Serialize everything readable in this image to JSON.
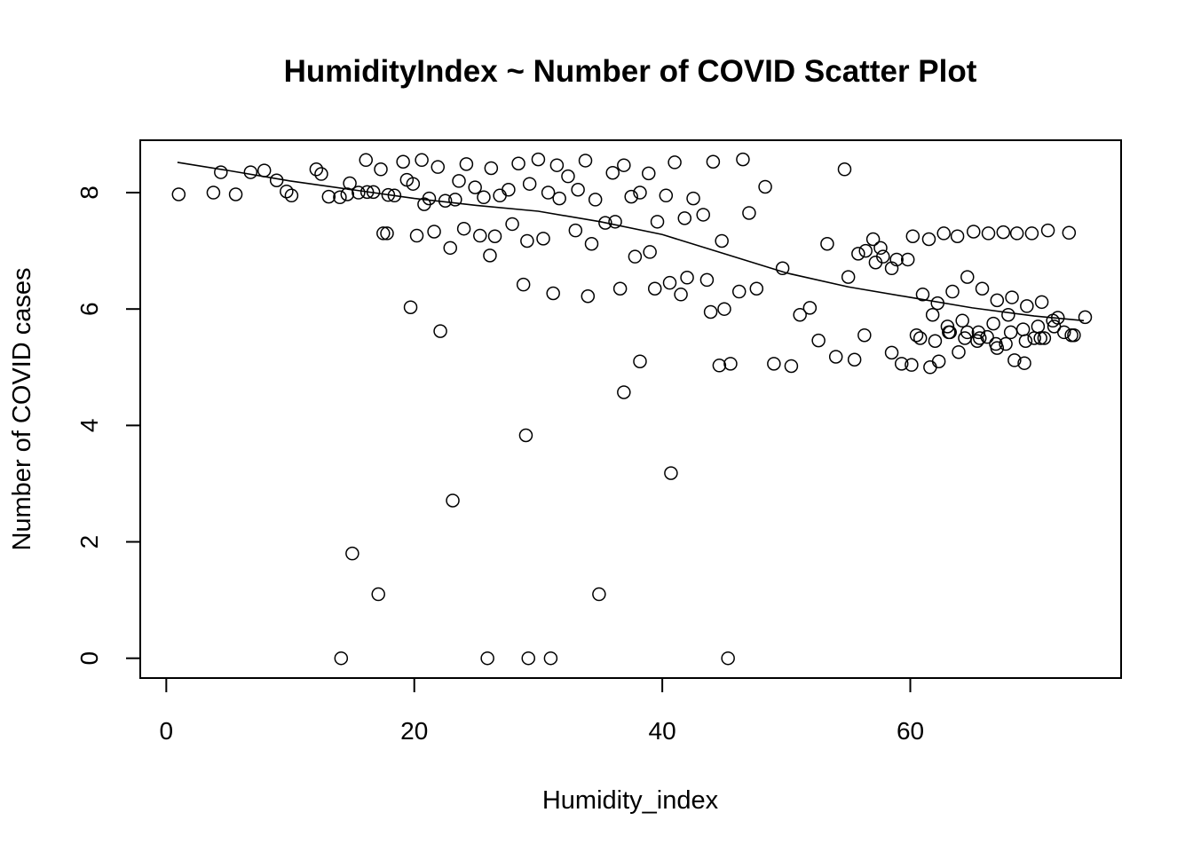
{
  "chart_data": {
    "type": "scatter",
    "title": "HumidityIndex ~ Number of COVID Scatter Plot",
    "xlabel": "Humidity_index",
    "ylabel": "Number of COVID cases",
    "xlim": [
      -2.1,
      77
    ],
    "ylim": [
      -0.34,
      8.9
    ],
    "x_ticks": [
      0,
      20,
      40,
      60
    ],
    "y_ticks": [
      0,
      2,
      4,
      6,
      8
    ],
    "grid": false,
    "legend": "none",
    "point_style": "open-circle",
    "colors": {
      "points": "#000000",
      "trend": "#000000",
      "background": "#ffffff"
    },
    "trend_line": {
      "x": [
        0.9,
        5,
        10,
        15,
        20,
        25,
        30,
        35,
        40,
        45,
        50,
        55,
        60,
        65,
        70,
        74
      ],
      "y": [
        8.52,
        8.38,
        8.2,
        8.05,
        7.9,
        7.78,
        7.68,
        7.5,
        7.28,
        6.95,
        6.62,
        6.38,
        6.2,
        6.02,
        5.88,
        5.8
      ]
    },
    "outliers": {
      "x": [
        14.1,
        15.0,
        17.1,
        19.7,
        22.1,
        23.1,
        25.9,
        29.0,
        29.2,
        31.0,
        34.9,
        36.9,
        38.2,
        40.7,
        45.3
      ],
      "y": [
        0.0,
        1.8,
        1.1,
        6.03,
        5.62,
        2.71,
        0.0,
        3.83,
        0.0,
        0.0,
        1.1,
        4.57,
        5.1,
        3.18,
        0.0
      ]
    },
    "series": [
      {
        "x": [
          1.0,
          3.8,
          4.4,
          5.6,
          6.8,
          7.9,
          8.9,
          9.7,
          10.1,
          12.1,
          12.5,
          13.1,
          14.0,
          14.6,
          16.1,
          16.7,
          17.3,
          17.9,
          18.4,
          19.1,
          19.9,
          20.6,
          21.2,
          21.9,
          22.5,
          23.3,
          24.2,
          24.9,
          25.6,
          26.2,
          26.9,
          27.6,
          28.4,
          29.3,
          30.0,
          30.8,
          31.5,
          32.4,
          33.2,
          33.8,
          34.6,
          35.4,
          36.0,
          36.9,
          37.5,
          38.2,
          38.9,
          39.6,
          40.3,
          41.0,
          41.8,
          42.5,
          43.3,
          44.1,
          44.8,
          46.5,
          14.8,
          16.2,
          17.5,
          19.4,
          20.2,
          21.6,
          22.9,
          24.0,
          25.3,
          26.5,
          27.9,
          29.1,
          30.4,
          31.7,
          33.0,
          34.3,
          36.2,
          37.8,
          39.0,
          40.6,
          42.0,
          43.6,
          45.0,
          15.5,
          17.8,
          20.8,
          23.6,
          26.1,
          28.8,
          31.2,
          34.0,
          36.6,
          39.4,
          41.5,
          43.9,
          44.6,
          45.5,
          46.2,
          47.0,
          47.6,
          48.3,
          49.0,
          49.7,
          50.4,
          51.1,
          51.9,
          52.6,
          53.3,
          54.0,
          54.7,
          55.5,
          56.3,
          57.0,
          57.8,
          58.5,
          59.3,
          60.1,
          60.8,
          61.6,
          62.3,
          63.1,
          63.9,
          64.6,
          65.4,
          66.2,
          67.0,
          67.7,
          68.4,
          69.2,
          70.0,
          70.8,
          71.6,
          72.4,
          73.2
        ],
        "y": [
          7.97,
          8.0,
          8.35,
          7.97,
          8.35,
          8.38,
          8.21,
          8.02,
          7.95,
          8.4,
          8.32,
          7.93,
          7.92,
          7.97,
          8.56,
          8.01,
          8.4,
          7.96,
          7.95,
          8.53,
          8.15,
          8.56,
          7.9,
          8.44,
          7.86,
          7.88,
          8.49,
          8.09,
          7.92,
          8.42,
          7.95,
          8.05,
          8.5,
          8.15,
          8.57,
          8.0,
          8.47,
          8.28,
          8.05,
          8.55,
          7.88,
          7.48,
          8.34,
          8.47,
          7.93,
          8.0,
          8.33,
          7.5,
          7.95,
          8.52,
          7.56,
          7.9,
          7.62,
          8.53,
          7.17,
          8.57,
          8.16,
          8.01,
          7.3,
          8.22,
          7.26,
          7.33,
          7.05,
          7.38,
          7.26,
          7.25,
          7.46,
          7.17,
          7.21,
          7.9,
          7.35,
          7.12,
          7.5,
          6.9,
          6.98,
          6.45,
          6.54,
          6.5,
          6.0,
          8.0,
          7.3,
          7.8,
          8.2,
          6.92,
          6.42,
          6.27,
          6.22,
          6.35,
          6.35,
          6.25,
          5.95,
          5.03,
          5.06,
          6.3,
          7.65,
          6.35,
          8.1,
          5.06,
          6.7,
          5.02,
          5.9,
          6.02,
          5.46,
          7.12,
          5.18,
          8.4,
          5.13,
          5.55,
          7.2,
          6.9,
          5.25,
          5.06,
          5.04,
          5.5,
          5.0,
          5.1,
          5.6,
          5.26,
          5.6,
          5.45,
          5.52,
          5.33,
          5.4,
          5.12,
          5.07,
          5.5,
          5.5,
          5.7,
          5.6,
          5.55
        ],
        "style": "open-circle"
      },
      {
        "x": [
          55.0,
          56.4,
          57.6,
          58.9,
          60.2,
          61.5,
          62.7,
          63.8,
          65.1,
          66.3,
          67.5,
          68.6,
          69.8,
          71.1,
          72.8,
          55.8,
          57.2,
          58.5,
          59.8,
          61.0,
          62.2,
          63.4,
          64.6,
          65.8,
          67.0,
          68.2,
          69.4,
          70.6,
          71.9,
          60.5,
          61.8,
          63.0,
          64.2,
          65.5,
          66.7,
          67.9,
          69.1,
          70.3,
          71.5,
          73.0,
          74.1,
          62.0,
          63.2,
          64.4,
          65.6,
          66.9,
          68.1,
          69.3,
          70.5
        ],
        "y": [
          6.55,
          7.0,
          7.05,
          6.85,
          7.25,
          7.2,
          7.3,
          7.25,
          7.33,
          7.3,
          7.32,
          7.3,
          7.3,
          7.35,
          7.31,
          6.95,
          6.8,
          6.7,
          6.85,
          6.25,
          6.1,
          6.3,
          6.55,
          6.35,
          6.15,
          6.2,
          6.05,
          6.12,
          5.85,
          5.55,
          5.9,
          5.7,
          5.8,
          5.6,
          5.75,
          5.9,
          5.65,
          5.7,
          5.8,
          5.55,
          5.86,
          5.45,
          5.6,
          5.5,
          5.5,
          5.4,
          5.6,
          5.45,
          5.5
        ],
        "style": "open-circle"
      }
    ]
  }
}
